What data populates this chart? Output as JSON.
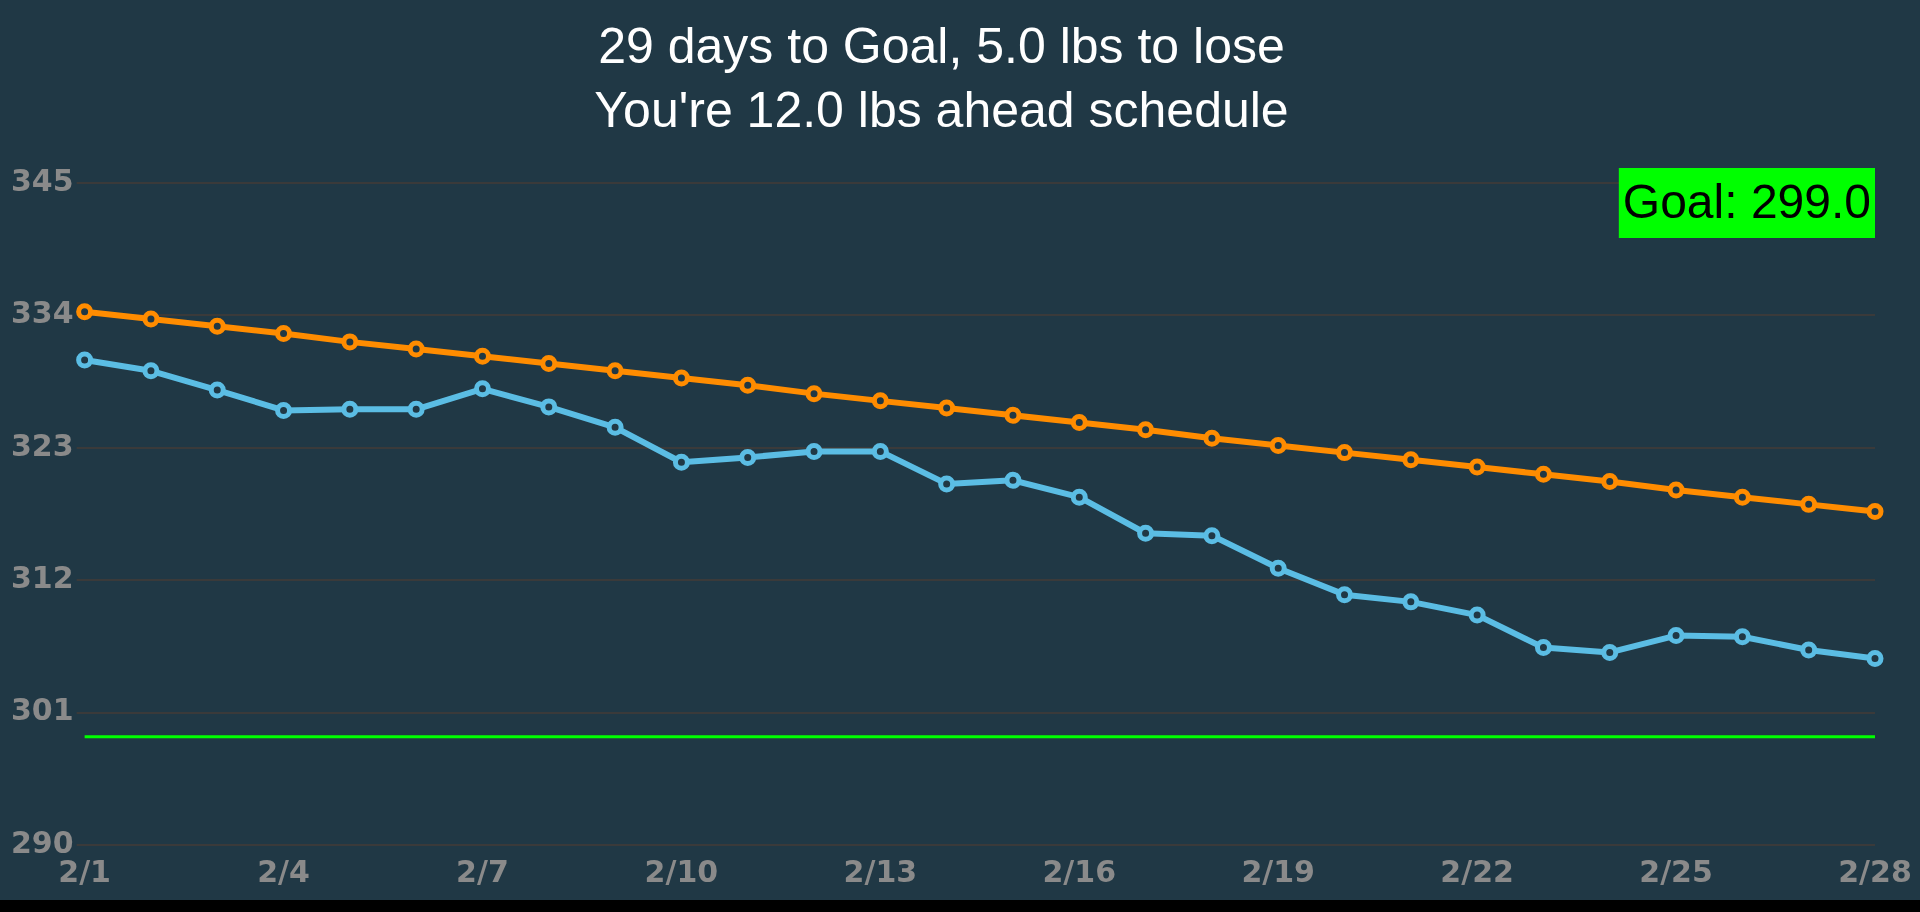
{
  "chart_data": {
    "type": "line",
    "title": "29 days to Goal, 5.0 lbs to lose",
    "subtitle": "You're 12.0 lbs ahead schedule",
    "categories": [
      "2/1",
      null,
      null,
      "2/4",
      null,
      null,
      "2/7",
      null,
      null,
      "2/10",
      null,
      null,
      "2/13",
      null,
      null,
      "2/16",
      null,
      null,
      "2/19",
      null,
      null,
      "2/22",
      null,
      null,
      "2/25",
      null,
      null,
      "2/28"
    ],
    "series": [
      {
        "color": "#ff8c00",
        "values": [
          334.3,
          333.7,
          333.1,
          332.5,
          331.8,
          331.2,
          330.6,
          330.0,
          329.4,
          328.8,
          328.2,
          327.5,
          326.9,
          326.3,
          325.7,
          325.1,
          324.5,
          323.8,
          323.2,
          322.6,
          322.0,
          321.4,
          320.8,
          320.2,
          319.5,
          318.9,
          318.3,
          317.7
        ]
      },
      {
        "color": "#5bbde4",
        "values": [
          330.3,
          329.4,
          327.8,
          326.1,
          326.2,
          326.2,
          327.9,
          326.4,
          324.7,
          321.8,
          322.2,
          322.7,
          322.7,
          320.0,
          320.3,
          318.9,
          315.9,
          315.7,
          313.0,
          310.8,
          310.2,
          309.1,
          306.4,
          306.0,
          307.4,
          307.3,
          306.2,
          305.5
        ]
      }
    ],
    "ylim": [
      290,
      345
    ],
    "yticks": [
      290,
      301,
      312,
      323,
      334,
      345
    ],
    "grid": "y",
    "legend": false,
    "marker": "circle",
    "line_style": "solid",
    "ref_lines": [
      {
        "axis": "y",
        "value": 299,
        "color": "#00ff00"
      }
    ],
    "annotations": [
      "Goal: 299.0"
    ]
  }
}
